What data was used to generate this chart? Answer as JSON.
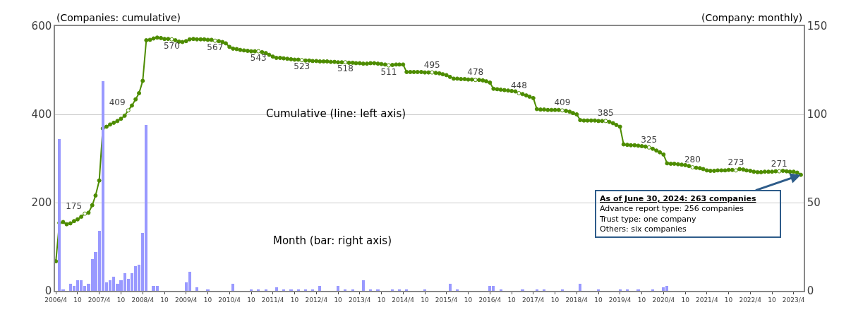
{
  "chart_data": {
    "type": "line",
    "ylabel": "(Companies: cumulative)",
    "y2label": "(Company: monthly)",
    "xlim": [
      "2006-03-25",
      "2023-06-25"
    ],
    "xticks": [
      {
        "value": "2006-04",
        "label": "2006/4"
      },
      {
        "value": "2006-10",
        "label": "10"
      },
      {
        "value": "2007-04",
        "label": "2007/4"
      },
      {
        "value": "2007-10",
        "label": "10"
      },
      {
        "value": "2008-04",
        "label": "2008/4"
      },
      {
        "value": "2008-10",
        "label": "10"
      },
      {
        "value": "2009-04",
        "label": "2009/4"
      },
      {
        "value": "2009-10",
        "label": "10"
      },
      {
        "value": "2010-04",
        "label": "2010/4"
      },
      {
        "value": "2010-10",
        "label": "10"
      },
      {
        "value": "2011-04",
        "label": "2011/4"
      },
      {
        "value": "2011-10",
        "label": "10"
      },
      {
        "value": "2012-04",
        "label": "2012/4"
      },
      {
        "value": "2012-10",
        "label": "10"
      },
      {
        "value": "2013-04",
        "label": "2013/4"
      },
      {
        "value": "2013-10",
        "label": "10"
      },
      {
        "value": "2014-04",
        "label": "2014/4"
      },
      {
        "value": "2014-10",
        "label": "10"
      },
      {
        "value": "2015-04",
        "label": "2015/4"
      },
      {
        "value": "2015-10",
        "label": "10"
      },
      {
        "value": "2016-04",
        "label": "2016/4"
      },
      {
        "value": "2016-10",
        "label": "10"
      },
      {
        "value": "2017-04",
        "label": "2017/4"
      },
      {
        "value": "2017-10",
        "label": "10"
      },
      {
        "value": "2018-04",
        "label": "2018/4"
      },
      {
        "value": "2018-10",
        "label": "10"
      },
      {
        "value": "2019-04",
        "label": "2019/4"
      },
      {
        "value": "2019-10",
        "label": "10"
      },
      {
        "value": "2020-04",
        "label": "2020/4"
      },
      {
        "value": "2020-10",
        "label": "10"
      },
      {
        "value": "2021-04",
        "label": "2021/4"
      },
      {
        "value": "2021-10",
        "label": "10"
      },
      {
        "value": "2022-04",
        "label": "2022/4"
      },
      {
        "value": "2022-10",
        "label": "10"
      },
      {
        "value": "2023-04",
        "label": "2023/4"
      }
    ],
    "ylim": [
      0,
      600
    ],
    "yticks": [
      0,
      200,
      400,
      600
    ],
    "y2lim": [
      0,
      150
    ],
    "y2ticks": [
      0,
      50,
      100,
      150
    ],
    "grid": "y",
    "marker": "circle",
    "series": [
      {
        "type": "bar",
        "axis": "y2",
        "color": "#9999ff",
        "x": [
          "2006-05",
          "2006-06",
          "2006-08",
          "2006-09",
          "2006-10",
          "2006-11",
          "2006-12",
          "2007-01",
          "2007-02",
          "2007-03",
          "2007-04",
          "2007-05",
          "2007-06",
          "2007-07",
          "2007-08",
          "2007-09",
          "2007-10",
          "2007-11",
          "2007-12",
          "2008-01",
          "2008-02",
          "2008-03",
          "2008-04",
          "2008-05",
          "2008-07",
          "2008-08",
          "2009-04",
          "2009-05",
          "2009-07",
          "2009-10",
          "2010-05",
          "2010-10",
          "2010-12",
          "2011-02",
          "2011-05",
          "2011-07",
          "2011-09",
          "2011-11",
          "2012-01",
          "2012-03",
          "2012-05",
          "2012-10",
          "2012-12",
          "2013-02",
          "2013-05",
          "2013-07",
          "2013-09",
          "2014-01",
          "2014-03",
          "2014-05",
          "2014-10",
          "2015-05",
          "2015-07",
          "2016-04",
          "2016-05",
          "2016-07",
          "2017-01",
          "2017-05",
          "2017-07",
          "2017-12",
          "2018-05",
          "2018-10",
          "2019-04",
          "2019-06",
          "2019-09",
          "2020-01",
          "2020-04",
          "2020-05"
        ],
        "values": [
          86,
          1,
          4,
          3,
          6,
          6,
          3,
          4,
          18,
          22,
          34,
          119,
          5,
          6,
          8,
          4,
          6,
          10,
          7,
          10,
          14,
          15,
          33,
          94,
          3,
          3,
          5,
          11,
          2,
          1,
          4,
          1,
          1,
          1,
          2,
          1,
          1,
          1,
          1,
          1,
          3,
          3,
          1,
          1,
          6,
          1,
          1,
          1,
          1,
          1,
          1,
          4,
          1,
          3,
          3,
          1,
          1,
          1,
          1,
          1,
          4,
          1,
          1,
          1,
          1,
          1,
          2,
          3
        ]
      },
      {
        "color": "#4d8c00",
        "x": [
          "2006-04",
          "2006-05",
          "2006-06",
          "2006-07",
          "2006-08",
          "2006-09",
          "2006-10",
          "2006-11",
          "2006-12",
          "2007-01",
          "2007-02",
          "2007-03",
          "2007-04",
          "2007-05",
          "2007-06",
          "2007-07",
          "2007-08",
          "2007-09",
          "2007-10",
          "2007-11",
          "2007-12",
          "2008-01",
          "2008-02",
          "2008-03",
          "2008-04",
          "2008-05",
          "2008-06",
          "2008-07",
          "2008-08",
          "2008-09",
          "2008-10",
          "2008-11",
          "2008-12",
          "2009-01",
          "2009-02",
          "2009-03",
          "2009-04",
          "2009-05",
          "2009-06",
          "2009-07",
          "2009-08",
          "2009-09",
          "2009-10",
          "2009-11",
          "2009-12",
          "2010-01",
          "2010-02",
          "2010-03",
          "2010-04",
          "2010-05",
          "2010-06",
          "2010-07",
          "2010-08",
          "2010-09",
          "2010-10",
          "2010-11",
          "2010-12",
          "2011-01",
          "2011-02",
          "2011-03",
          "2011-04",
          "2011-05",
          "2011-06",
          "2011-07",
          "2011-08",
          "2011-09",
          "2011-10",
          "2011-11",
          "2011-12",
          "2012-01",
          "2012-02",
          "2012-03",
          "2012-04",
          "2012-05",
          "2012-06",
          "2012-07",
          "2012-08",
          "2012-09",
          "2012-10",
          "2012-11",
          "2012-12",
          "2013-01",
          "2013-02",
          "2013-03",
          "2013-04",
          "2013-05",
          "2013-06",
          "2013-07",
          "2013-08",
          "2013-09",
          "2013-10",
          "2013-11",
          "2013-12",
          "2014-01",
          "2014-02",
          "2014-03",
          "2014-04",
          "2014-05",
          "2014-06",
          "2014-07",
          "2014-08",
          "2014-09",
          "2014-10",
          "2014-11",
          "2014-12",
          "2015-01",
          "2015-02",
          "2015-03",
          "2015-04",
          "2015-05",
          "2015-06",
          "2015-07",
          "2015-08",
          "2015-09",
          "2015-10",
          "2015-11",
          "2015-12",
          "2016-01",
          "2016-02",
          "2016-03",
          "2016-04",
          "2016-05",
          "2016-06",
          "2016-07",
          "2016-08",
          "2016-09",
          "2016-10",
          "2016-11",
          "2016-12",
          "2017-01",
          "2017-02",
          "2017-03",
          "2017-04",
          "2017-05",
          "2017-06",
          "2017-07",
          "2017-08",
          "2017-09",
          "2017-10",
          "2017-11",
          "2017-12",
          "2018-01",
          "2018-02",
          "2018-03",
          "2018-04",
          "2018-05",
          "2018-06",
          "2018-07",
          "2018-08",
          "2018-09",
          "2018-10",
          "2018-11",
          "2018-12",
          "2019-01",
          "2019-02",
          "2019-03",
          "2019-04",
          "2019-05",
          "2019-06",
          "2019-07",
          "2019-08",
          "2019-09",
          "2019-10",
          "2019-11",
          "2019-12",
          "2020-01",
          "2020-02",
          "2020-03",
          "2020-04",
          "2020-05",
          "2020-06",
          "2020-07",
          "2020-08",
          "2020-09",
          "2020-10",
          "2020-11",
          "2020-12",
          "2021-01",
          "2021-02",
          "2021-03",
          "2021-04",
          "2021-05",
          "2021-06",
          "2021-07",
          "2021-08",
          "2021-09",
          "2021-10",
          "2021-11",
          "2021-12",
          "2022-01",
          "2022-02",
          "2022-03",
          "2022-04",
          "2022-05",
          "2022-06",
          "2022-07",
          "2022-08",
          "2022-09",
          "2022-10",
          "2022-11",
          "2022-12",
          "2023-01",
          "2023-02",
          "2023-03",
          "2023-04",
          "2023-05",
          "2023-06"
        ],
        "values": [
          67,
          154,
          156,
          151,
          153,
          158,
          162,
          168,
          175,
          177,
          194,
          216,
          250,
          368,
          372,
          377,
          381,
          385,
          390,
          397,
          409,
          420,
          434,
          448,
          476,
          568,
          569,
          572,
          574,
          573,
          571,
          571,
          570,
          568,
          565,
          564,
          566,
          570,
          571,
          570,
          570,
          570,
          569,
          569,
          567,
          566,
          564,
          561,
          553,
          549,
          548,
          546,
          545,
          544,
          543,
          543,
          543,
          541,
          539,
          535,
          531,
          528,
          528,
          527,
          526,
          525,
          524,
          524,
          523,
          522,
          522,
          521,
          521,
          520,
          520,
          520,
          519,
          519,
          518,
          518,
          518,
          517,
          517,
          516,
          516,
          515,
          515,
          516,
          516,
          515,
          514,
          513,
          511,
          512,
          513,
          513,
          513,
          496,
          496,
          496,
          496,
          496,
          495,
          495,
          495,
          494,
          493,
          491,
          489,
          485,
          481,
          481,
          480,
          480,
          479,
          479,
          478,
          478,
          477,
          475,
          472,
          458,
          457,
          456,
          455,
          454,
          453,
          452,
          448,
          446,
          443,
          440,
          437,
          412,
          411,
          411,
          410,
          410,
          410,
          410,
          409,
          408,
          406,
          403,
          400,
          387,
          386,
          386,
          386,
          386,
          385,
          385,
          385,
          383,
          380,
          376,
          372,
          332,
          331,
          330,
          330,
          329,
          328,
          327,
          325,
          322,
          318,
          314,
          309,
          289,
          288,
          288,
          287,
          286,
          285,
          283,
          280,
          279,
          278,
          276,
          273,
          272,
          272,
          273,
          273,
          273,
          274,
          274,
          273,
          276,
          275,
          273,
          272,
          270,
          269,
          269,
          270,
          270,
          270,
          271,
          271,
          272,
          271,
          270,
          270,
          268,
          263
        ],
        "value_labels": [
          null,
          null,
          null,
          null,
          null,
          null,
          null,
          null,
          "175",
          null,
          null,
          null,
          null,
          null,
          null,
          null,
          null,
          null,
          null,
          null,
          "409",
          null,
          null,
          null,
          null,
          null,
          null,
          null,
          null,
          null,
          null,
          null,
          "570",
          null,
          null,
          null,
          null,
          null,
          null,
          null,
          null,
          null,
          null,
          null,
          "567",
          null,
          null,
          null,
          null,
          null,
          null,
          null,
          null,
          null,
          null,
          null,
          "543",
          null,
          null,
          null,
          null,
          null,
          null,
          null,
          null,
          null,
          null,
          null,
          "523",
          null,
          null,
          null,
          null,
          null,
          null,
          null,
          null,
          null,
          null,
          null,
          "518",
          null,
          null,
          null,
          null,
          null,
          null,
          null,
          null,
          null,
          null,
          null,
          "511",
          null,
          null,
          null,
          null,
          null,
          null,
          null,
          null,
          null,
          null,
          null,
          "495",
          null,
          null,
          null,
          null,
          null,
          null,
          null,
          null,
          null,
          null,
          null,
          "478",
          null,
          null,
          null,
          null,
          null,
          null,
          null,
          null,
          null,
          null,
          null,
          "448",
          null,
          null,
          null,
          null,
          null,
          null,
          null,
          null,
          null,
          null,
          null,
          "409",
          null,
          null,
          null,
          null,
          null,
          null,
          null,
          null,
          null,
          null,
          null,
          "385",
          null,
          null,
          null,
          null,
          null,
          null,
          null,
          null,
          null,
          null,
          null,
          "325",
          null,
          null,
          null,
          null,
          null,
          null,
          null,
          null,
          null,
          null,
          null,
          "280",
          null,
          null,
          null,
          null,
          null,
          null,
          null,
          null,
          null,
          null,
          null,
          "273",
          null,
          null,
          null,
          null,
          null,
          null,
          null,
          null,
          null,
          null,
          null,
          "271",
          null,
          null,
          null,
          null,
          null,
          null
        ]
      }
    ],
    "annotations": [
      "Cumulative (line: left axis)",
      "Month (bar: right axis)",
      {
        "text": "As of June 30, 2024: 263 companies\nAdvance report type: 256 companies\nTrust type: one company\nOthers: six companies",
        "x": "2023-06",
        "y": 263
      }
    ]
  }
}
